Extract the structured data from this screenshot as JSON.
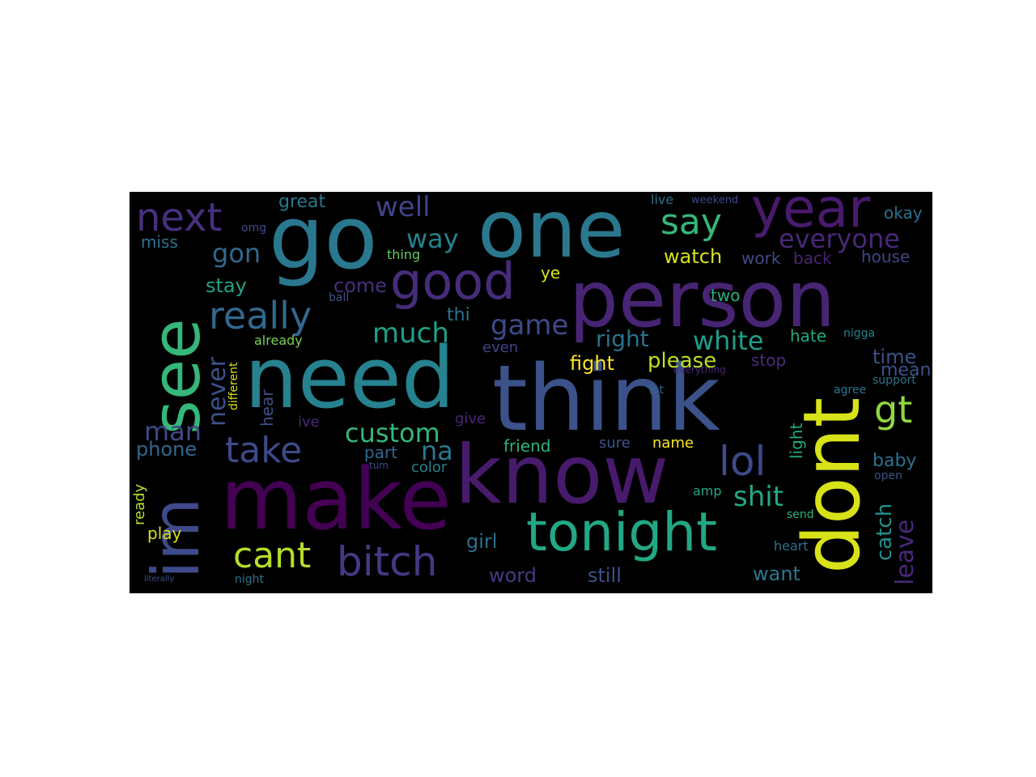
{
  "words": [
    {
      "text": "person",
      "color": "#482475"
    },
    {
      "text": "think",
      "color": "#3b528b"
    },
    {
      "text": "make",
      "color": "#440154"
    },
    {
      "text": "know",
      "color": "#481a6c"
    },
    {
      "text": "need",
      "color": "#26828e"
    },
    {
      "text": "one",
      "color": "#2a788e"
    },
    {
      "text": "go",
      "color": "#2a788e"
    },
    {
      "text": "see",
      "color": "#35b779"
    },
    {
      "text": "dont",
      "color": "#d8e219"
    },
    {
      "text": "im",
      "color": "#3e4a89"
    },
    {
      "text": "year",
      "color": "#481a6c"
    },
    {
      "text": "good",
      "color": "#472c7a"
    },
    {
      "text": "tonight",
      "color": "#22a884"
    },
    {
      "text": "next",
      "color": "#46307e"
    },
    {
      "text": "really",
      "color": "#31688e"
    },
    {
      "text": "bitch",
      "color": "#443983"
    },
    {
      "text": "take",
      "color": "#3e4a89"
    },
    {
      "text": "cant",
      "color": "#b5de2b"
    },
    {
      "text": "lol",
      "color": "#3e4a89"
    },
    {
      "text": "say",
      "color": "#35b779"
    },
    {
      "text": "gt",
      "color": "#90d743"
    },
    {
      "text": "everyone",
      "color": "#482878"
    },
    {
      "text": "custom",
      "color": "#35b779"
    },
    {
      "text": "well",
      "color": "#414487"
    },
    {
      "text": "way",
      "color": "#26828e"
    },
    {
      "text": "much",
      "color": "#1f9e89"
    },
    {
      "text": "game",
      "color": "#3e4a89"
    },
    {
      "text": "white",
      "color": "#1f9e89"
    },
    {
      "text": "gon",
      "color": "#31688e"
    },
    {
      "text": "shit",
      "color": "#22a884"
    },
    {
      "text": "never",
      "color": "#3b528b"
    },
    {
      "text": "man",
      "color": "#3e4a89"
    },
    {
      "text": "na",
      "color": "#2a788e"
    },
    {
      "text": "watch",
      "color": "#d8e219"
    },
    {
      "text": "right",
      "color": "#2c728e"
    },
    {
      "text": "leave",
      "color": "#482878"
    },
    {
      "text": "catch",
      "color": "#21918c"
    },
    {
      "text": "please",
      "color": "#bddf26"
    },
    {
      "text": "fight",
      "color": "#fde725"
    },
    {
      "text": "stay",
      "color": "#20a386"
    },
    {
      "text": "come",
      "color": "#46307e"
    },
    {
      "text": "great",
      "color": "#2a788e"
    },
    {
      "text": "time",
      "color": "#3b528b"
    },
    {
      "text": "mean",
      "color": "#3b528b"
    },
    {
      "text": "okay",
      "color": "#2c728e"
    },
    {
      "text": "house",
      "color": "#414487"
    },
    {
      "text": "work",
      "color": "#3e4a89"
    },
    {
      "text": "back",
      "color": "#482475"
    },
    {
      "text": "hate",
      "color": "#22a884"
    },
    {
      "text": "baby",
      "color": "#2c728e"
    },
    {
      "text": "phone",
      "color": "#31688e"
    },
    {
      "text": "miss",
      "color": "#2c728e"
    },
    {
      "text": "girl",
      "color": "#2c728e"
    },
    {
      "text": "word",
      "color": "#443983"
    },
    {
      "text": "still",
      "color": "#3b528b"
    },
    {
      "text": "want",
      "color": "#2a788e"
    },
    {
      "text": "friend",
      "color": "#2db27d"
    },
    {
      "text": "name",
      "color": "#fde725"
    },
    {
      "text": "sure",
      "color": "#3b528b"
    },
    {
      "text": "give",
      "color": "#482878"
    },
    {
      "text": "part",
      "color": "#31688e"
    },
    {
      "text": "color",
      "color": "#26828e"
    },
    {
      "text": "play",
      "color": "#d8e219"
    },
    {
      "text": "ready",
      "color": "#b5de2b"
    },
    {
      "text": "hear",
      "color": "#3b528b"
    },
    {
      "text": "different",
      "color": "#d8e219"
    },
    {
      "text": "already",
      "color": "#7ad151"
    },
    {
      "text": "thi",
      "color": "#2c728e"
    },
    {
      "text": "even",
      "color": "#414487"
    },
    {
      "text": "stop",
      "color": "#472d7b"
    },
    {
      "text": "two",
      "color": "#29af7f"
    },
    {
      "text": "ye",
      "color": "#d8e219"
    },
    {
      "text": "thing",
      "color": "#5ec962"
    },
    {
      "text": "ball",
      "color": "#3b528b"
    },
    {
      "text": "live",
      "color": "#2c728e"
    },
    {
      "text": "weekend",
      "color": "#3e4a89"
    },
    {
      "text": "omg",
      "color": "#3e4a89"
    },
    {
      "text": "light",
      "color": "#22a884"
    },
    {
      "text": "ive",
      "color": "#482878"
    },
    {
      "text": "amp",
      "color": "#22a884"
    },
    {
      "text": "lot",
      "color": "#31688e"
    },
    {
      "text": "agree",
      "color": "#2a788e"
    },
    {
      "text": "support",
      "color": "#2c728e"
    },
    {
      "text": "everything",
      "color": "#482878"
    },
    {
      "text": "nigga",
      "color": "#26828e"
    },
    {
      "text": "open",
      "color": "#3b528b"
    },
    {
      "text": "send",
      "color": "#2db27d"
    },
    {
      "text": "heart",
      "color": "#2c728e"
    },
    {
      "text": "tum",
      "color": "#3e4a89"
    },
    {
      "text": "night",
      "color": "#2c728e"
    },
    {
      "text": "literally",
      "color": "#3b528b"
    }
  ]
}
